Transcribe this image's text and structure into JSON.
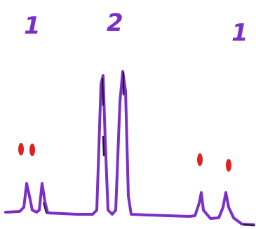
{
  "labels": {
    "left": "1",
    "center": "2",
    "right": "1"
  },
  "colors": {
    "trace": "#7a30c8",
    "dots": "#e02020",
    "background": "#ffffff"
  }
}
